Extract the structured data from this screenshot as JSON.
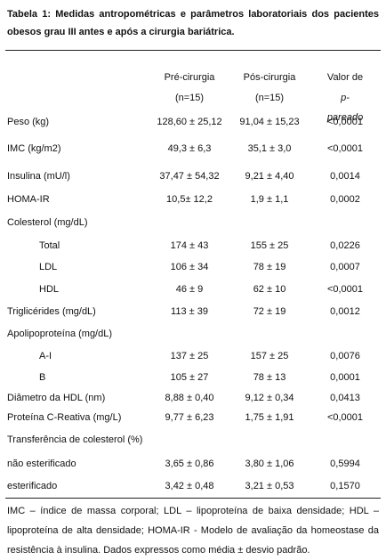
{
  "title": "Tabela 1: Medidas antropométricas e parâmetros laboratoriais dos pacientes obesos grau III antes e após a cirurgia bariátrica.",
  "table": {
    "header": [
      [
        "Pré-cirurgia",
        "(n=15)"
      ],
      [
        "Pós-cirurgia",
        "(n=15)"
      ],
      [
        "Valor de",
        "p-",
        "pareado"
      ]
    ],
    "rows": [
      [
        "Peso (kg)",
        "128,60 ± 25,12",
        "91,04 ± 15,23",
        "<0,0001"
      ],
      [
        "IMC (kg/m2)",
        "49,3 ± 6,3",
        "35,1 ± 3,0",
        "<0,0001"
      ],
      [
        "Insulina (mU/l)",
        "37,47 ± 54,32",
        "9,21 ± 4,40",
        "0,0014"
      ],
      [
        "HOMA-IR",
        "10,5± 12,2",
        "1,9 ± 1,1",
        "0,0002"
      ],
      [
        "Colesterol (mg/dL)"
      ],
      [
        "Total",
        "174 ± 43",
        "155 ± 25",
        "0,0226"
      ],
      [
        "LDL",
        "106 ± 34",
        "78 ± 19",
        "0,0007"
      ],
      [
        "HDL",
        "46 ± 9",
        "62 ± 10",
        "<0,0001"
      ],
      [
        "Triglicérides (mg/dL)",
        "113 ± 39",
        "72 ± 19",
        "0,0012"
      ],
      [
        "Apolipoproteína (mg/dL)"
      ],
      [
        "A-I",
        "137 ± 25",
        "157 ± 25",
        "0,0076"
      ],
      [
        "B",
        "105 ± 27",
        "78 ± 13",
        "0,0001"
      ],
      [
        "Diâmetro da HDL (nm)",
        "8,88 ± 0,40",
        "9,12 ± 0,34",
        "0,0413"
      ],
      [
        "Proteína C-Reativa (mg/L)",
        "9,77 ± 6,23",
        "1,75 ± 1,91",
        "<0,0001"
      ],
      [
        "Transferência de colesterol (%)"
      ],
      [
        "não esterificado",
        "3,65 ± 0,86",
        "3,80 ± 1,06",
        "0,5994"
      ],
      [
        "esterificado",
        "3,42 ± 0,48",
        "3,21 ± 0,53",
        "0,1570"
      ]
    ]
  },
  "footnote": "IMC – índice de massa corporal; LDL – lipoproteína de baixa densidade; HDL – lipoproteína de alta densidade; HOMA-IR - Modelo de avaliação da homeostase da resistência à insulina. Dados expressos como média ± desvio padrão."
}
